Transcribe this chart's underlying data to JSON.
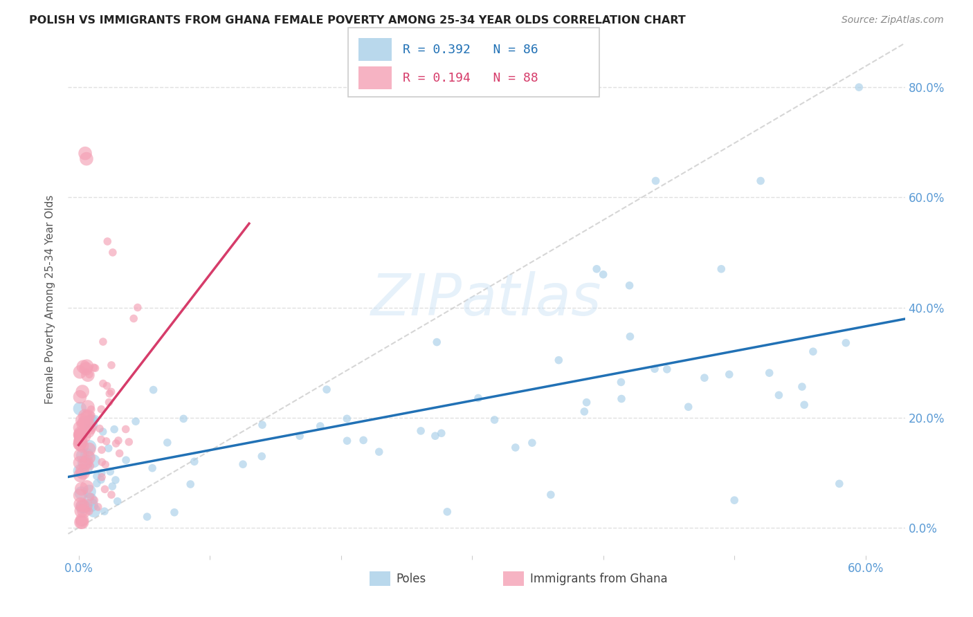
{
  "title": "POLISH VS IMMIGRANTS FROM GHANA FEMALE POVERTY AMONG 25-34 YEAR OLDS CORRELATION CHART",
  "source": "Source: ZipAtlas.com",
  "ylabel": "Female Poverty Among 25-34 Year Olds",
  "xlabel_poles": "Poles",
  "xlabel_ghana": "Immigrants from Ghana",
  "poles_R": 0.392,
  "poles_N": 86,
  "ghana_R": 0.194,
  "ghana_N": 88,
  "xlim": [
    -0.008,
    0.63
  ],
  "ylim": [
    -0.05,
    0.88
  ],
  "xticks": [
    0.0,
    0.1,
    0.2,
    0.3,
    0.4,
    0.5,
    0.6
  ],
  "yticks": [
    0.0,
    0.2,
    0.4,
    0.6,
    0.8
  ],
  "color_poles": "#a8cfe8",
  "color_ghana": "#f4a0b5",
  "color_poles_line": "#2171b5",
  "color_ghana_line": "#d63c6a",
  "color_diag": "#cccccc",
  "background_color": "#ffffff",
  "watermark": "ZIPatlas",
  "title_color": "#222222",
  "source_color": "#888888",
  "tick_color": "#5b9bd5",
  "ylabel_color": "#555555",
  "grid_color": "#e0e0e0"
}
